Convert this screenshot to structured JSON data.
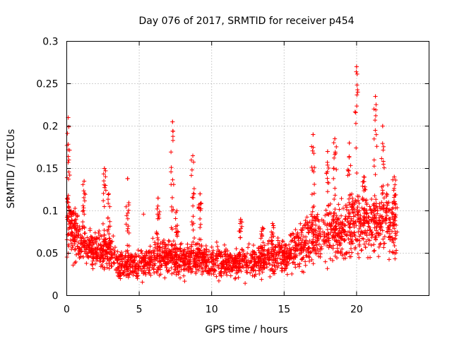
{
  "chart_data": {
    "type": "scatter",
    "title": "Day 076 of 2017, SRMTID for receiver p454",
    "xlabel": "GPS time / hours",
    "ylabel": "SRMTID / TECUs",
    "xlim": [
      0,
      25
    ],
    "ylim": [
      0,
      0.3
    ],
    "x_ticks": [
      0,
      5,
      10,
      15,
      20
    ],
    "x_tick_labels": [
      "0",
      "5",
      "10",
      "15",
      "20"
    ],
    "y_ticks": [
      0,
      0.05,
      0.1,
      0.15,
      0.2,
      0.25,
      0.3
    ],
    "y_tick_labels": [
      "0",
      "0.05",
      "0.1",
      "0.15",
      "0.2",
      "0.25",
      "0.3"
    ],
    "grid": true,
    "marker": "+",
    "series": [
      {
        "name": "p454",
        "color": "#ff0000",
        "x_range": [
          0.0,
          22.8
        ],
        "trend": {
          "x": [
            0,
            0.3,
            1,
            2,
            3,
            4,
            5,
            6,
            7,
            8,
            9,
            10,
            11,
            12,
            13,
            14,
            15,
            16,
            17,
            18,
            19,
            20,
            21,
            22,
            22.8
          ],
          "y": [
            0.085,
            0.075,
            0.06,
            0.055,
            0.05,
            0.035,
            0.038,
            0.042,
            0.045,
            0.043,
            0.045,
            0.04,
            0.04,
            0.038,
            0.04,
            0.045,
            0.045,
            0.058,
            0.07,
            0.07,
            0.075,
            0.085,
            0.085,
            0.085,
            0.08
          ]
        },
        "bursts": [
          {
            "x": 0.1,
            "y": 0.21
          },
          {
            "x": 0.3,
            "y": 0.1
          },
          {
            "x": 1.2,
            "y": 0.135
          },
          {
            "x": 2.6,
            "y": 0.15
          },
          {
            "x": 2.9,
            "y": 0.12
          },
          {
            "x": 4.2,
            "y": 0.138
          },
          {
            "x": 6.3,
            "y": 0.115
          },
          {
            "x": 7.3,
            "y": 0.205
          },
          {
            "x": 7.6,
            "y": 0.1
          },
          {
            "x": 8.7,
            "y": 0.165
          },
          {
            "x": 9.2,
            "y": 0.12
          },
          {
            "x": 12.0,
            "y": 0.09
          },
          {
            "x": 13.5,
            "y": 0.08
          },
          {
            "x": 14.2,
            "y": 0.085
          },
          {
            "x": 17.0,
            "y": 0.19
          },
          {
            "x": 18.0,
            "y": 0.17
          },
          {
            "x": 18.5,
            "y": 0.185
          },
          {
            "x": 19.5,
            "y": 0.18
          },
          {
            "x": 20.0,
            "y": 0.27
          },
          {
            "x": 20.5,
            "y": 0.14
          },
          {
            "x": 21.3,
            "y": 0.235
          },
          {
            "x": 21.8,
            "y": 0.2
          },
          {
            "x": 22.6,
            "y": 0.14
          }
        ],
        "points": [
          [
            0.05,
            0.09
          ],
          [
            0.1,
            0.21
          ],
          [
            0.15,
            0.16
          ],
          [
            0.2,
            0.08
          ],
          [
            0.4,
            0.07
          ],
          [
            0.6,
            0.055
          ],
          [
            0.8,
            0.05
          ],
          [
            1.0,
            0.065
          ],
          [
            1.2,
            0.135
          ],
          [
            1.5,
            0.045
          ],
          [
            1.8,
            0.06
          ],
          [
            2.1,
            0.05
          ],
          [
            2.4,
            0.07
          ],
          [
            2.6,
            0.15
          ],
          [
            2.9,
            0.12
          ],
          [
            3.2,
            0.055
          ],
          [
            3.4,
            0.03
          ],
          [
            3.7,
            0.02
          ],
          [
            4.0,
            0.035
          ],
          [
            4.2,
            0.138
          ],
          [
            4.6,
            0.04
          ],
          [
            5.0,
            0.035
          ],
          [
            5.3,
            0.096
          ],
          [
            5.7,
            0.04
          ],
          [
            6.0,
            0.05
          ],
          [
            6.3,
            0.115
          ],
          [
            6.7,
            0.04
          ],
          [
            7.0,
            0.06
          ],
          [
            7.3,
            0.205
          ],
          [
            7.6,
            0.1
          ],
          [
            8.0,
            0.04
          ],
          [
            8.4,
            0.05
          ],
          [
            8.7,
            0.165
          ],
          [
            9.2,
            0.12
          ],
          [
            9.6,
            0.04
          ],
          [
            10.0,
            0.045
          ],
          [
            10.5,
            0.035
          ],
          [
            11.0,
            0.04
          ],
          [
            11.5,
            0.035
          ],
          [
            12.0,
            0.09
          ],
          [
            12.5,
            0.035
          ],
          [
            13.0,
            0.04
          ],
          [
            13.5,
            0.08
          ],
          [
            14.0,
            0.045
          ],
          [
            14.2,
            0.085
          ],
          [
            14.6,
            0.035
          ],
          [
            15.0,
            0.05
          ],
          [
            15.5,
            0.045
          ],
          [
            16.0,
            0.06
          ],
          [
            16.5,
            0.08
          ],
          [
            17.0,
            0.19
          ],
          [
            17.5,
            0.07
          ],
          [
            18.0,
            0.17
          ],
          [
            18.5,
            0.185
          ],
          [
            19.0,
            0.07
          ],
          [
            19.5,
            0.18
          ],
          [
            20.0,
            0.27
          ],
          [
            20.2,
            0.1
          ],
          [
            20.5,
            0.14
          ],
          [
            21.0,
            0.09
          ],
          [
            21.3,
            0.235
          ],
          [
            21.8,
            0.2
          ],
          [
            22.2,
            0.08
          ],
          [
            22.6,
            0.14
          ],
          [
            22.8,
            0.075
          ]
        ]
      }
    ]
  }
}
